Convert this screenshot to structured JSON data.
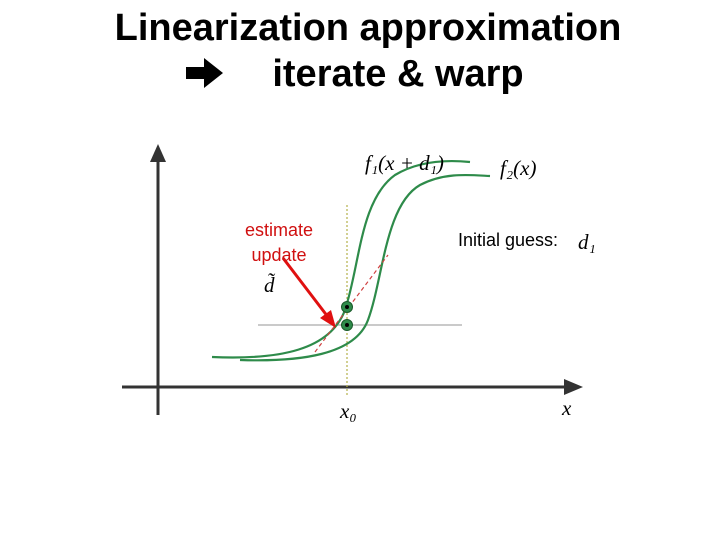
{
  "title": {
    "line1": "Linearization approximation",
    "line2": "iterate & warp"
  },
  "diagram": {
    "curve1_label": "f₁(x + d₁)",
    "curve2_label": "f₂(x)",
    "estimate_label": [
      "estimate",
      "update"
    ],
    "update_symbol": "d̃",
    "guess_label": "Initial guess:",
    "guess_symbol": "d₁",
    "x0_label": "x₀",
    "x_axis_label": "x"
  }
}
